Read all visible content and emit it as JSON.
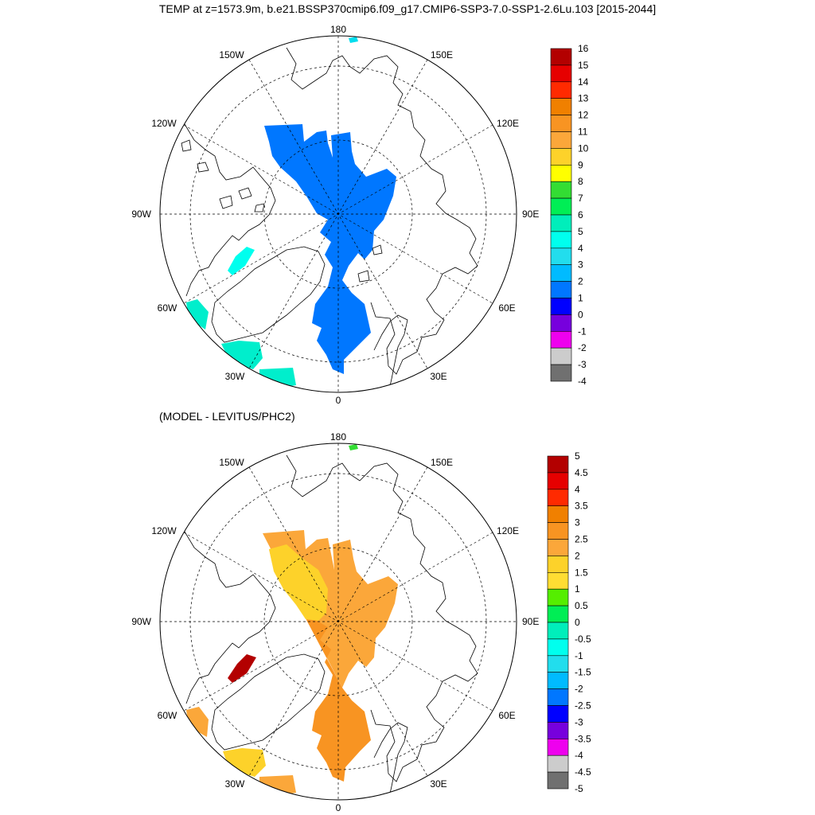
{
  "title": "TEMP at z=1573.9m, b.e21.BSSP370cmip6.f09_g17.CMIP6-SSP3-7.0-SSP1-2.6Lu.103 [2015-2044]",
  "lower_title": "(MODEL - LEVITUS/PHC2)",
  "longitude_labels": {
    "top": "180",
    "bottom": "0",
    "left": "90W",
    "right": "90E",
    "ul1": "150W",
    "ul2": "120W",
    "ur1": "150E",
    "ur2": "120E",
    "ll1": "60W",
    "ll2": "30W",
    "lr1": "60E",
    "lr2": "30E"
  },
  "colorbar_top": {
    "labels": [
      "16",
      "15",
      "14",
      "13",
      "12",
      "11",
      "10",
      "9",
      "8",
      "7",
      "6",
      "5",
      "4",
      "3",
      "2",
      "1",
      "0",
      "-1",
      "-2",
      "-3",
      "-4"
    ],
    "colors": [
      "#b30000",
      "#e60000",
      "#ff2a00",
      "#f08000",
      "#f89422",
      "#fba73a",
      "#fdd22a",
      "#ffff00",
      "#33dd33",
      "#00ee55",
      "#00eebb",
      "#00ffee",
      "#22dded",
      "#00bbff",
      "#0077ff",
      "#0000ff",
      "#7700dd",
      "#ee00ee",
      "#cccccc",
      "#707070"
    ]
  },
  "colorbar_bottom": {
    "labels": [
      "5",
      "4.5",
      "4",
      "3.5",
      "3",
      "2.5",
      "2",
      "1.5",
      "1",
      "0.5",
      "0",
      "-0.5",
      "-1",
      "-1.5",
      "-2",
      "-2.5",
      "-3",
      "-3.5",
      "-4",
      "-4.5",
      "-5"
    ],
    "colors": [
      "#b30000",
      "#e60000",
      "#ff2a00",
      "#f08000",
      "#f89422",
      "#fba73a",
      "#fdd22a",
      "#ffdd33",
      "#55ee00",
      "#00ee55",
      "#00eebb",
      "#00ffee",
      "#22dded",
      "#00bbff",
      "#0077ff",
      "#0000ff",
      "#7700dd",
      "#ee00ee",
      "#cccccc",
      "#707070"
    ]
  }
}
